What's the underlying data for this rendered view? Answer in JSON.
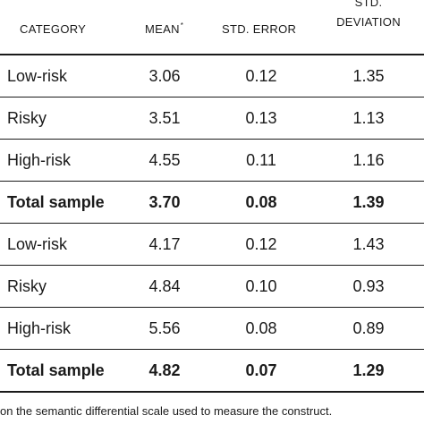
{
  "header": {
    "category": "CATEGORY",
    "mean": "MEAN",
    "mean_mark": "*",
    "std_error": "STD. ERROR",
    "std_dev_line1": "STD.",
    "std_dev_line2": "DEVIATION"
  },
  "rows": [
    {
      "category": "Low-risk",
      "mean": "3.06",
      "std_error": "0.12",
      "std_dev": "1.35",
      "total": false
    },
    {
      "category": "Risky",
      "mean": "3.51",
      "std_error": "0.13",
      "std_dev": "1.13",
      "total": false
    },
    {
      "category": "High-risk",
      "mean": "4.55",
      "std_error": "0.11",
      "std_dev": "1.16",
      "total": false
    },
    {
      "category": "Total sample",
      "mean": "3.70",
      "std_error": "0.08",
      "std_dev": "1.39",
      "total": true
    },
    {
      "category": "Low-risk",
      "mean": "4.17",
      "std_error": "0.12",
      "std_dev": "1.43",
      "total": false
    },
    {
      "category": "Risky",
      "mean": "4.84",
      "std_error": "0.10",
      "std_dev": "0.93",
      "total": false
    },
    {
      "category": "High-risk",
      "mean": "5.56",
      "std_error": "0.08",
      "std_dev": "0.89",
      "total": false
    },
    {
      "category": "Total sample",
      "mean": "4.82",
      "std_error": "0.07",
      "std_dev": "1.29",
      "total": true
    }
  ],
  "footnote": "on the semantic differential scale used to measure the construct."
}
